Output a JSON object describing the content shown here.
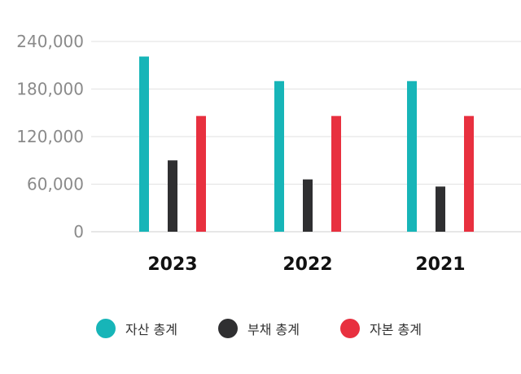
{
  "chart_data": {
    "type": "bar",
    "categories": [
      "2023",
      "2022",
      "2021"
    ],
    "series": [
      {
        "name": "자산 총계",
        "color": "#17b5b8",
        "values": [
          221000,
          190000,
          190000
        ]
      },
      {
        "name": "부채 총계",
        "color": "#2f2f31",
        "values": [
          90000,
          66000,
          57000
        ]
      },
      {
        "name": "자본 총계",
        "color": "#e8303f",
        "values": [
          146000,
          146000,
          146000
        ]
      }
    ],
    "ylim": [
      0,
      240000
    ],
    "yticks": [
      0,
      60000,
      120000,
      180000,
      240000
    ],
    "ytick_labels": [
      "0",
      "60,000",
      "120,000",
      "180,000",
      "240,000"
    ],
    "grid": true,
    "legend": "bottom"
  }
}
